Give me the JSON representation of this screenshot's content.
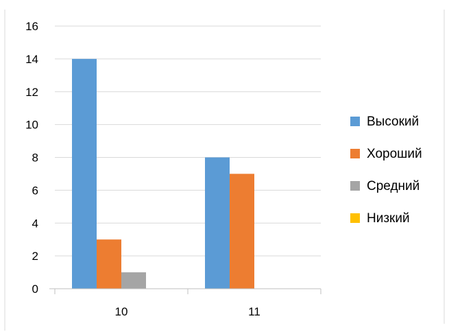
{
  "chart_data": {
    "type": "bar",
    "categories": [
      "10",
      "11"
    ],
    "series": [
      {
        "name": "Высокий",
        "values": [
          14,
          8
        ],
        "color": "#5B9BD5"
      },
      {
        "name": "Хороший",
        "values": [
          3,
          7
        ],
        "color": "#ED7D31"
      },
      {
        "name": "Средний",
        "values": [
          1,
          0
        ],
        "color": "#A5A5A5"
      },
      {
        "name": "Низкий",
        "values": [
          0,
          0
        ],
        "color": "#FFC000"
      }
    ],
    "ylim": [
      0,
      16
    ],
    "yticks": [
      "0",
      "2",
      "4",
      "6",
      "8",
      "10",
      "12",
      "14",
      "16"
    ],
    "grid": true,
    "legend_position": "right"
  }
}
